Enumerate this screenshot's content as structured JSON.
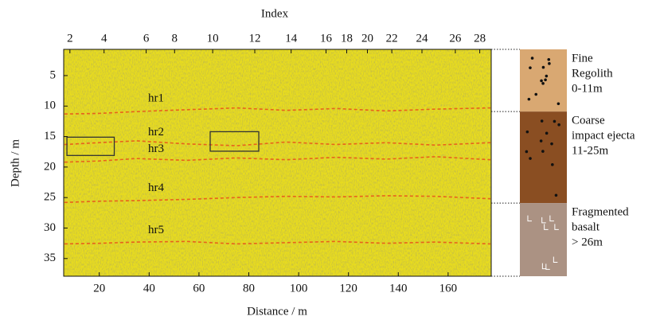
{
  "chart_data": {
    "type": "radargram",
    "title": "Index",
    "x_label": "Distance / m",
    "y_label": "Depth / m",
    "xlim": [
      5.7,
      177.3
    ],
    "xticks": [
      20,
      40,
      60,
      80,
      100,
      120,
      140,
      160
    ],
    "ylim": [
      0.7,
      37.9
    ],
    "y_inverted": true,
    "yticks": [
      5,
      10,
      15,
      20,
      25,
      30,
      35
    ],
    "x2ticks": [
      {
        "value": 8.2,
        "label": "2"
      },
      {
        "value": 21.9,
        "label": "4"
      },
      {
        "value": 38.8,
        "label": "6"
      },
      {
        "value": 50.2,
        "label": "8"
      },
      {
        "value": 65.5,
        "label": "10"
      },
      {
        "value": 82.4,
        "label": "12"
      },
      {
        "value": 97.0,
        "label": "14"
      },
      {
        "value": 111.0,
        "label": "16"
      },
      {
        "value": 119.3,
        "label": "18"
      },
      {
        "value": 127.6,
        "label": "20"
      },
      {
        "value": 137.4,
        "label": "22"
      },
      {
        "value": 149.5,
        "label": "24"
      },
      {
        "value": 162.9,
        "label": "26"
      },
      {
        "value": 172.7,
        "label": "28"
      }
    ],
    "background_color": "#e8dc1e",
    "x": [
      6,
      20,
      35,
      55,
      75,
      95,
      115,
      135,
      155,
      177
    ],
    "series": [
      {
        "name": "hr1",
        "color": "#e8621c",
        "values": [
          11.3,
          11.2,
          10.9,
          10.6,
          10.3,
          10.7,
          10.4,
          10.8,
          10.5,
          10.3
        ]
      },
      {
        "name": "hr2",
        "color": "#e8621c",
        "values": [
          16.3,
          16.0,
          15.7,
          16.2,
          16.5,
          15.9,
          16.3,
          16.0,
          16.4,
          16.0
        ]
      },
      {
        "name": "hr3",
        "color": "#e8621c",
        "values": [
          19.2,
          19.0,
          18.6,
          18.9,
          18.5,
          18.8,
          18.4,
          18.7,
          18.3,
          18.8
        ]
      },
      {
        "name": "hr4",
        "color": "#e8621c",
        "values": [
          25.8,
          25.6,
          25.5,
          25.3,
          25.0,
          24.8,
          24.9,
          24.7,
          24.8,
          25.2
        ]
      },
      {
        "name": "hr5",
        "color": "#e8621c",
        "values": [
          32.6,
          32.5,
          32.3,
          32.2,
          32.6,
          32.4,
          32.2,
          32.5,
          32.3,
          32.6
        ]
      }
    ],
    "boxes": [
      {
        "x": [
          7,
          26
        ],
        "y": [
          15.1,
          18.1
        ],
        "color": "#333333"
      },
      {
        "x": [
          64.5,
          84
        ],
        "y": [
          14.2,
          17.4
        ],
        "color": "#333333"
      }
    ],
    "layers": [
      {
        "label": [
          "Fine",
          "Regolith",
          "0-11m"
        ],
        "top": 0.7,
        "bottom": 10.9,
        "color": "#d9a872"
      },
      {
        "label": [
          "Coarse",
          "impact ejecta",
          "11-25m"
        ],
        "top": 10.9,
        "bottom": 25.9,
        "color": "#8a4e22"
      },
      {
        "label": [
          "Fragmented",
          "basalt",
          "> 26m"
        ],
        "top": 25.9,
        "bottom": 37.9,
        "color": "#ab9283"
      }
    ]
  }
}
